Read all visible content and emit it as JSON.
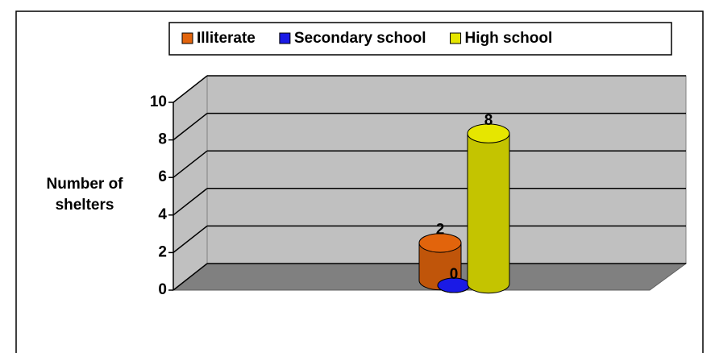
{
  "chart_data": {
    "type": "bar3d",
    "y_label": "Number of shelters",
    "categories": [
      null
    ],
    "series": [
      {
        "name": "Illiterate",
        "color": "#e2640c",
        "values": [
          2
        ]
      },
      {
        "name": "Secondary school",
        "color": "#1a1ae6",
        "values": [
          0
        ]
      },
      {
        "name": "High school",
        "color": "#e6e600",
        "values": [
          8
        ]
      }
    ],
    "ylim": [
      0,
      10
    ],
    "yticks": [
      0,
      2,
      4,
      6,
      8,
      10
    ],
    "grid": true,
    "legend": "top"
  }
}
